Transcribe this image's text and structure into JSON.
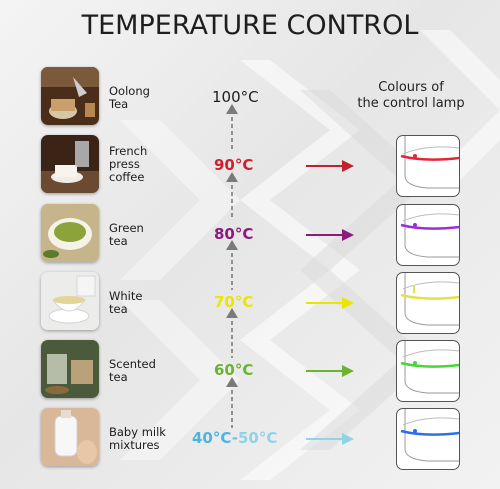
{
  "header": {
    "title": "TEMPERATURE CONTROL",
    "lamp_heading_line1": "Colours of",
    "lamp_heading_line2": "the control lamp"
  },
  "rows": [
    {
      "line1": "Oolong",
      "line2": "Tea",
      "line3": "",
      "temp": "100°C",
      "temp_color": "#1f1f1f",
      "lamp_color": ""
    },
    {
      "line1": "French",
      "line2": "press",
      "line3": "coffee",
      "temp": "90°C",
      "temp_color": "#d21f2c",
      "lamp_color": "#e52437"
    },
    {
      "line1": "Green",
      "line2": "tea",
      "line3": "",
      "temp": "80°C",
      "temp_color": "#8c1a7f",
      "lamp_color": "#9b2fd6"
    },
    {
      "line1": "White",
      "line2": "tea",
      "line3": "",
      "temp": "70°C",
      "temp_color": "#e9e600",
      "lamp_color": "#e3e24a"
    },
    {
      "line1": "Scented",
      "line2": "tea",
      "line3": "",
      "temp": "60°C",
      "temp_color": "#6cb331",
      "lamp_color": "#48d43a"
    },
    {
      "line1": "Baby milk",
      "line2": "mixtures",
      "line3": "",
      "temp": "40°C-50°C",
      "temp_a": "40°C",
      "temp_dash": "-",
      "temp_b": "50°C",
      "temp_color": "#49b6df",
      "temp_color_b": "#8fd3e6",
      "lamp_color": "#2f6ee8"
    }
  ],
  "icons": [
    "oolong-tea-photo-icon",
    "french-press-coffee-photo-icon",
    "green-tea-photo-icon",
    "white-tea-photo-icon",
    "scented-tea-photo-icon",
    "baby-milk-photo-icon",
    "kettle-lamp-icon",
    "arrow-right-icon",
    "arrow-up-icon"
  ]
}
